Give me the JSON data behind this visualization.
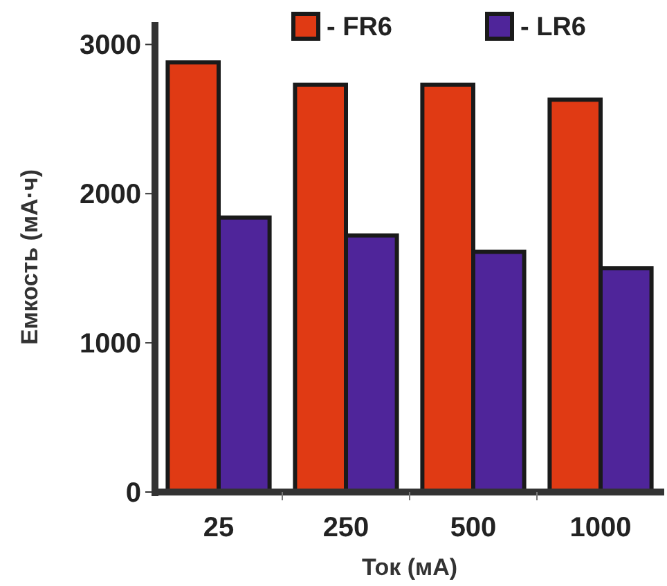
{
  "chart_data": {
    "type": "bar",
    "xlabel": "Ток (мА)",
    "ylabel": "Емкость (мА·ч)",
    "categories": [
      "25",
      "250",
      "500",
      "1000"
    ],
    "series": [
      {
        "name": "- FR6",
        "color": "#e03a14",
        "values": [
          2880,
          2730,
          2730,
          2630
        ]
      },
      {
        "name": "- LR6",
        "color": "#4f259a",
        "values": [
          1840,
          1720,
          1610,
          1500
        ]
      }
    ],
    "ylim": [
      0,
      3150
    ],
    "yticks": [
      0,
      1000,
      2000,
      3000
    ],
    "legend": "top right",
    "grid": false
  }
}
